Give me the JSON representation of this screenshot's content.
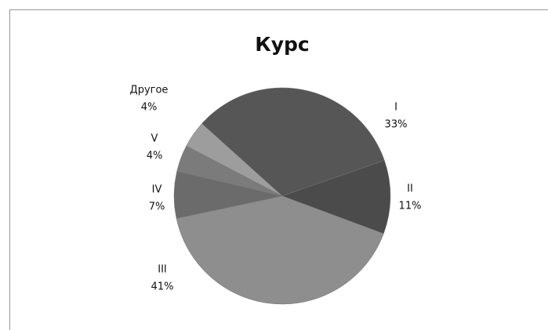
{
  "chart_data": {
    "type": "pie",
    "title": "Курс",
    "categories": [
      "I",
      "II",
      "III",
      "IV",
      "V",
      "Другое"
    ],
    "values": [
      33,
      11,
      41,
      7,
      4,
      4
    ],
    "value_labels": [
      "33%",
      "11%",
      "41%",
      "7%",
      "4%",
      "4%"
    ],
    "colors": [
      "#565656",
      "#4b4b4b",
      "#8e8e8e",
      "#6b6b6b",
      "#7b7b7b",
      "#9d9d9d"
    ]
  }
}
